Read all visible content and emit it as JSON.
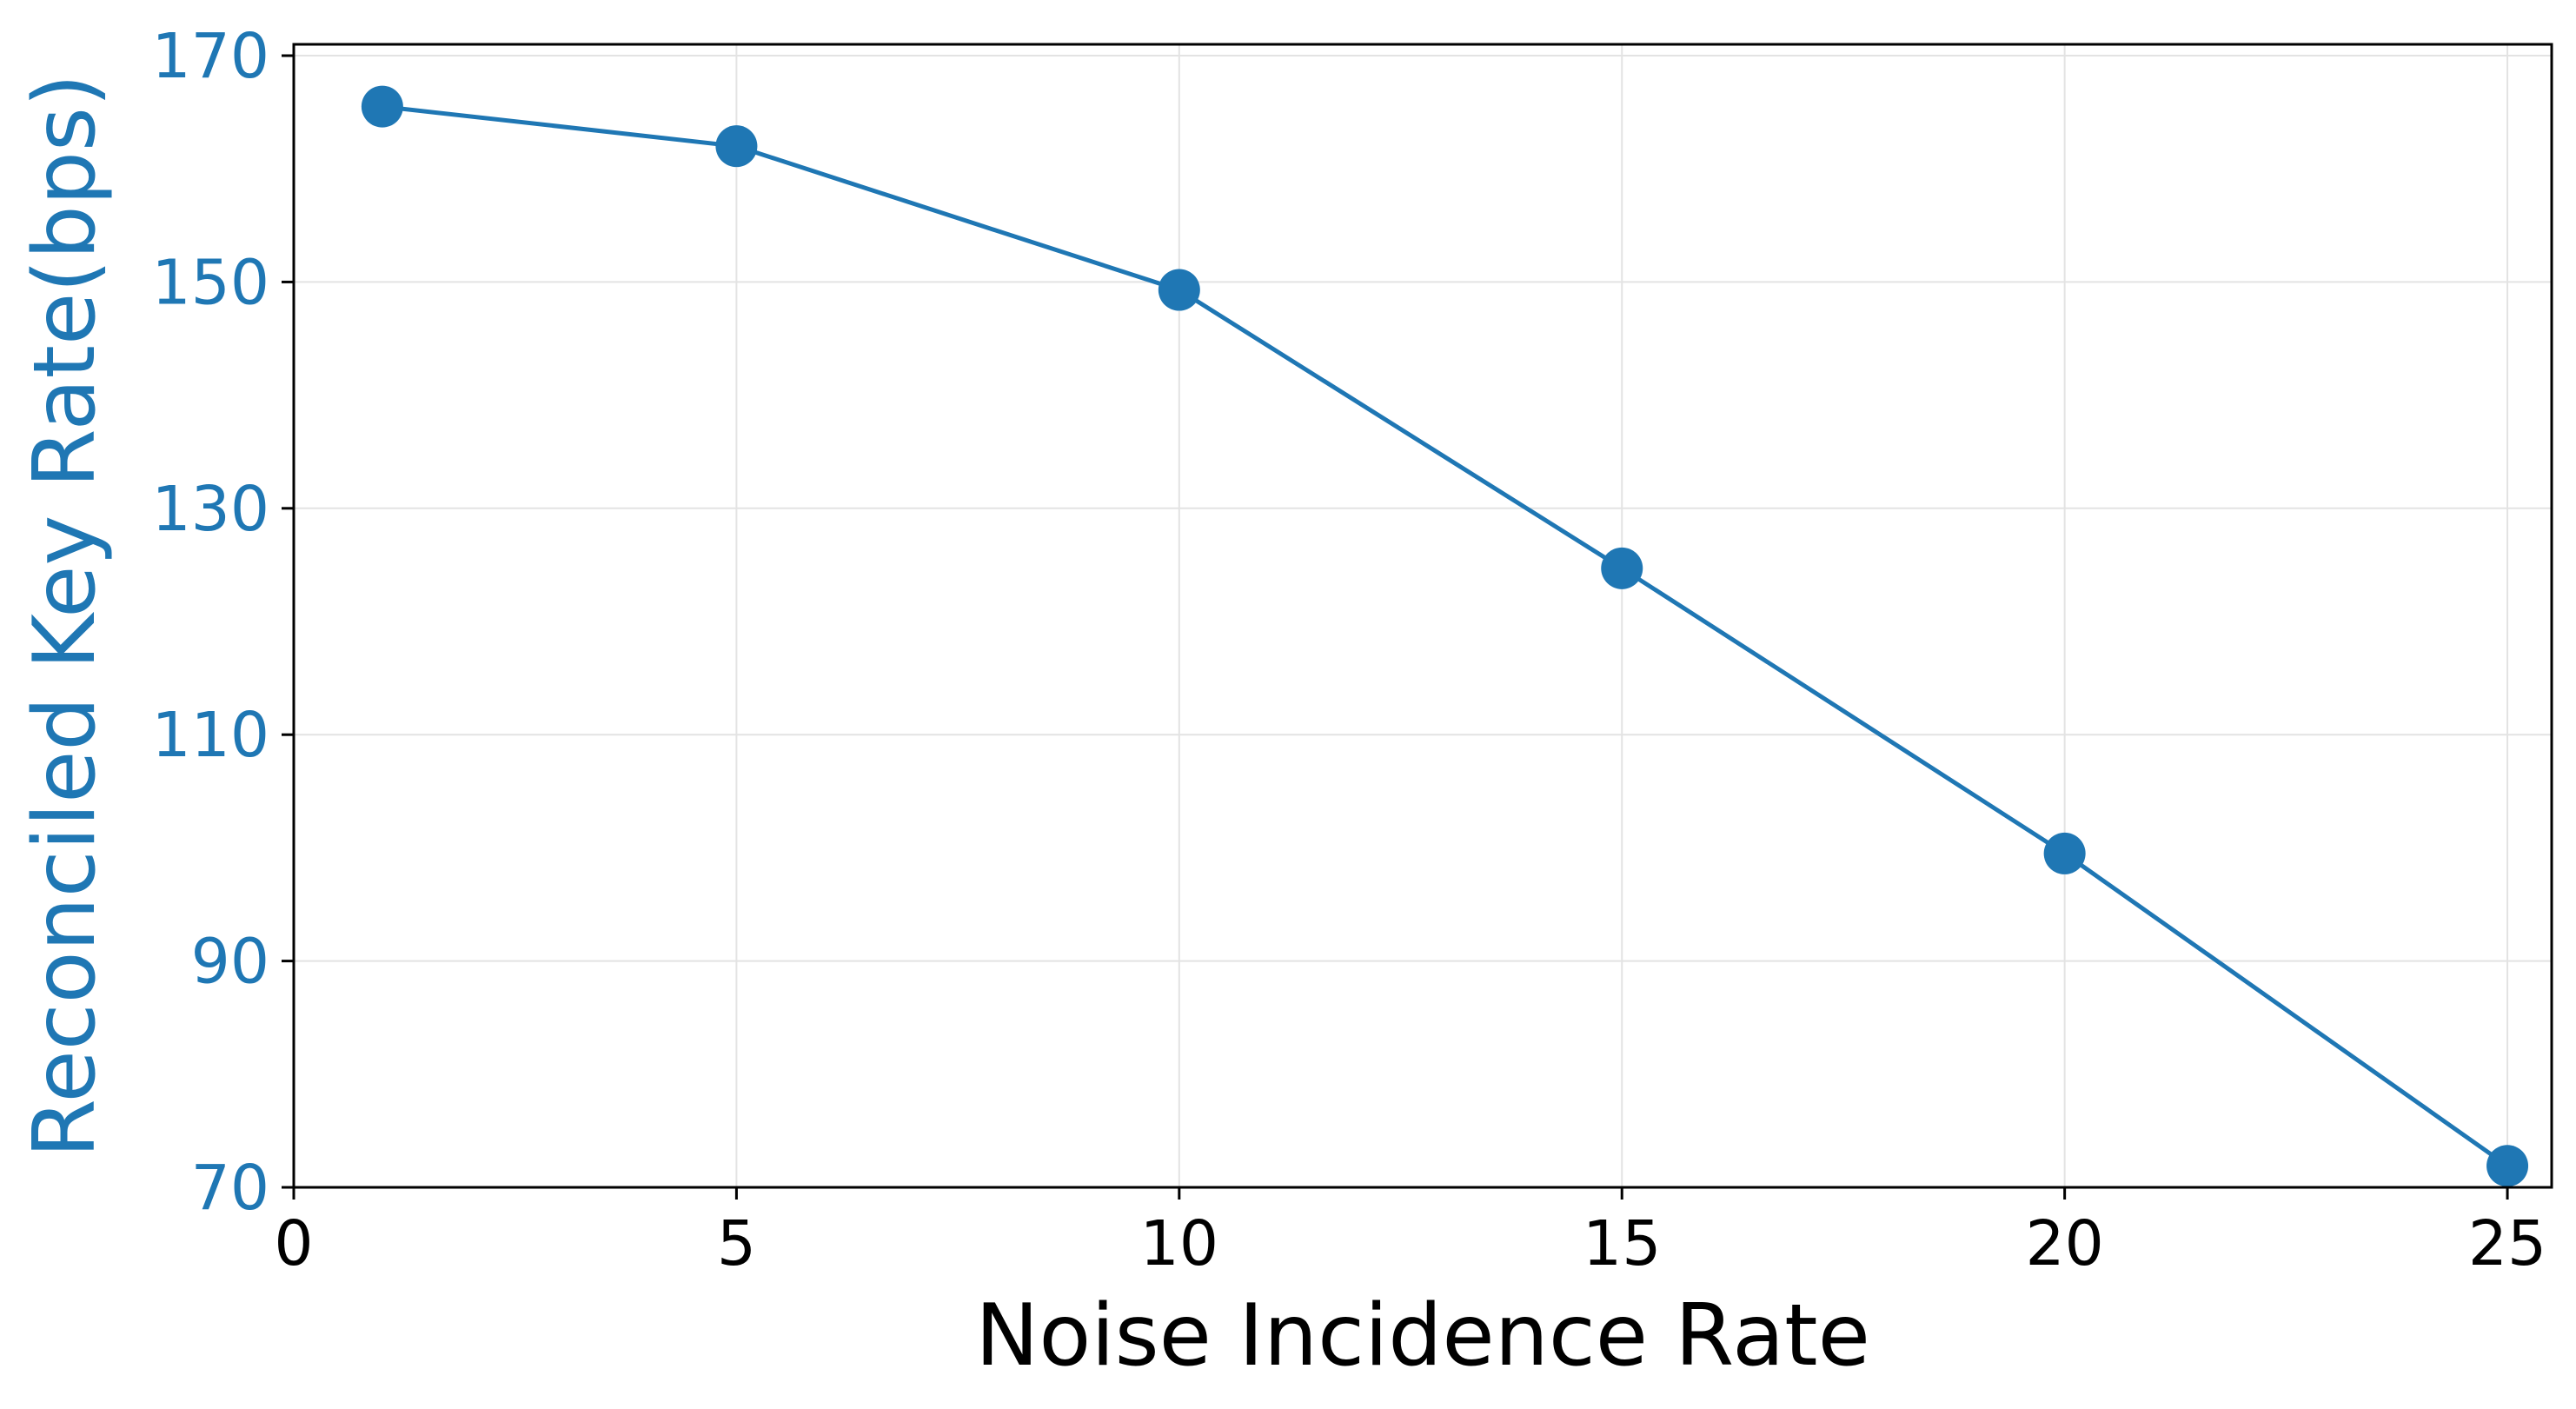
{
  "chart_data": {
    "type": "line",
    "title": "",
    "xlabel": "Noise Incidence Rate",
    "ylabel": "Reconciled Key Rate(bps)",
    "xlim": [
      0,
      25.5
    ],
    "ylim": [
      70,
      171
    ],
    "xticks": [
      0,
      5,
      10,
      15,
      20,
      25
    ],
    "yticks": [
      70,
      90,
      110,
      130,
      150,
      170
    ],
    "grid": true,
    "series": [
      {
        "x": [
          1,
          5,
          10,
          15,
          20,
          25
        ],
        "y": [
          165.5,
          162,
          149.3,
          124.7,
          99.5,
          71.9
        ],
        "color": "#1f77b4",
        "marker": "circle"
      }
    ],
    "ylabel_color": "#1f77b4",
    "ytick_color": "#1f77b4"
  }
}
